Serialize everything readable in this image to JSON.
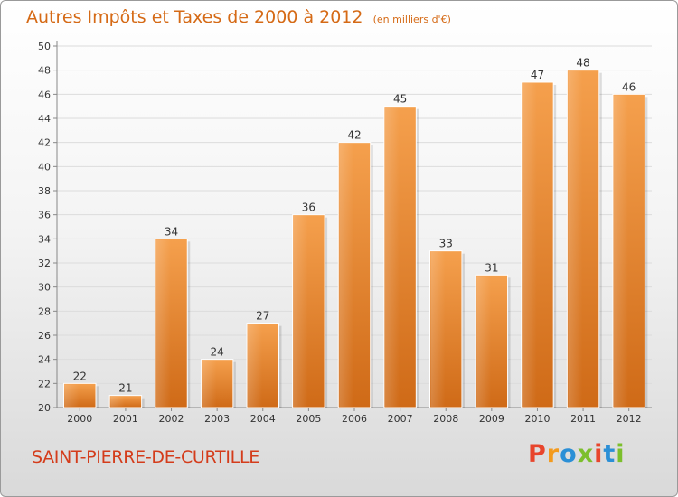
{
  "header": {
    "title": "Autres Impôts et Taxes de 2000 à 2012",
    "subtitle": "(en milliers d'€)"
  },
  "footer": {
    "commune": "SAINT-PIERRE-DE-CURTILLE",
    "logo_letters": [
      "P",
      "r",
      "o",
      "x",
      "i",
      "t",
      "i"
    ]
  },
  "colors": {
    "bar_top": "#f5a04d",
    "bar_bottom": "#cf6a17",
    "title": "#d56a16",
    "commune": "#d43c1b",
    "logo": [
      "#e8452c",
      "#f39a1d",
      "#2b8fd6",
      "#7cbf2c",
      "#e8452c",
      "#2b8fd6",
      "#7cbf2c"
    ]
  },
  "chart_data": {
    "type": "bar",
    "title": "Autres Impôts et Taxes de 2000 à 2012",
    "subtitle": "(en milliers d'€)",
    "categories": [
      "2000",
      "2001",
      "2002",
      "2003",
      "2004",
      "2005",
      "2006",
      "2007",
      "2008",
      "2009",
      "2010",
      "2011",
      "2012"
    ],
    "values": [
      22,
      21,
      34,
      24,
      27,
      36,
      42,
      45,
      33,
      31,
      47,
      48,
      46
    ],
    "ylim": [
      20,
      50
    ],
    "yticks": [
      20,
      22,
      24,
      26,
      28,
      30,
      32,
      34,
      36,
      38,
      40,
      42,
      44,
      46,
      48,
      50
    ],
    "grid": true,
    "legend": "none"
  }
}
